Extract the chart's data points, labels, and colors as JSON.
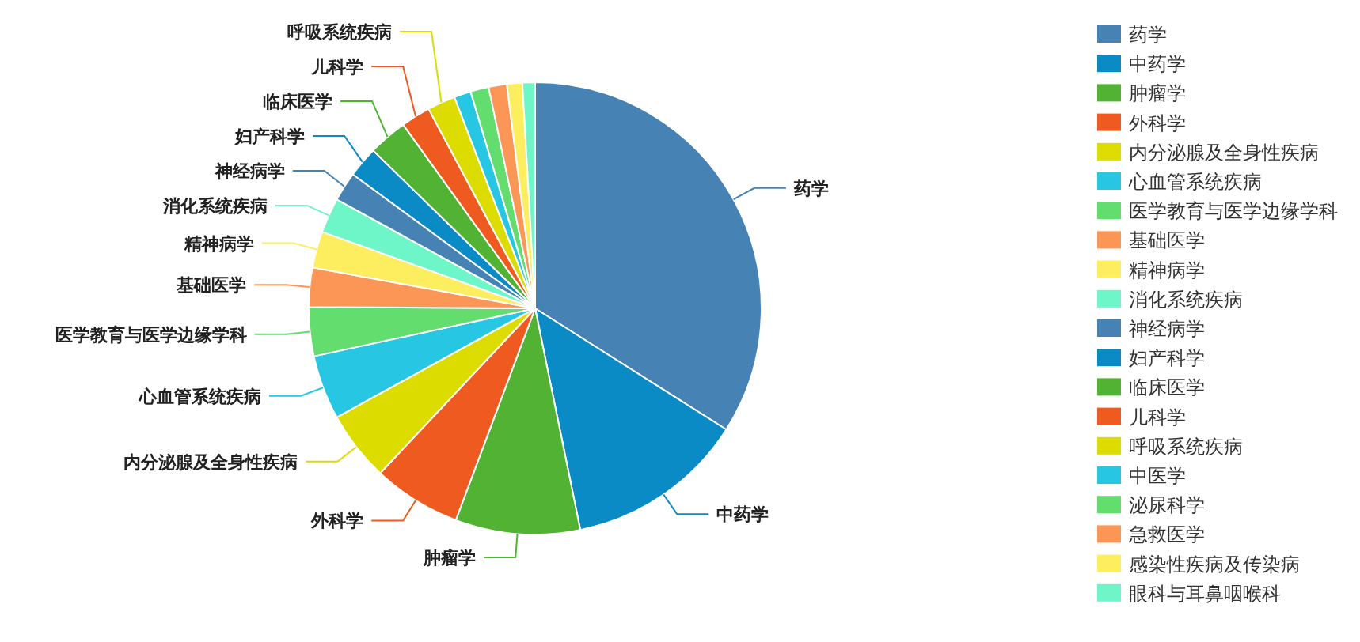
{
  "chart_data": {
    "type": "pie",
    "legend": "right",
    "categories": [
      "药学",
      "中药学",
      "肿瘤学",
      "外科学",
      "内分泌腺及全身性疾病",
      "心血管系统疾病",
      "医学教育与医学边缘学科",
      "基础医学",
      "精神病学",
      "消化系统疾病",
      "神经病学",
      "妇产科学",
      "临床医学",
      "儿科学",
      "呼吸系统疾病",
      "中医学",
      "泌尿科学",
      "急救医学",
      "感染性疾病及传染病",
      "眼科与耳鼻咽喉科"
    ],
    "values": [
      34,
      12.8,
      8.9,
      6.3,
      5,
      4.6,
      3.5,
      2.8,
      2.6,
      2.5,
      2.1,
      2.2,
      2.8,
      2.1,
      2,
      1.2,
      1.3,
      1.3,
      1.1,
      0.9
    ],
    "colors": [
      "#4682b4",
      "#0a8bc6",
      "#51b233",
      "#ee5a1f",
      "#dcdc00",
      "#27c7e3",
      "#62dd6e",
      "#fc9656",
      "#fcee5e",
      "#6ef5c8",
      "#4682b4",
      "#0a8bc6",
      "#51b233",
      "#ee5a1f",
      "#dcdc00",
      "#27c7e3",
      "#62dd6e",
      "#fc9656",
      "#fcee5e",
      "#6ef5c8"
    ]
  }
}
